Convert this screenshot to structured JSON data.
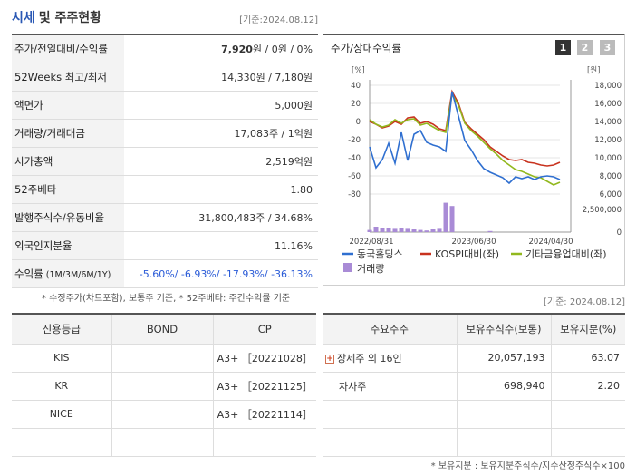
{
  "header": {
    "title": "시세",
    "subtitle": "및 주주현황",
    "date": "[기준:2024.08.12]"
  },
  "price_table": [
    {
      "label": "주가/전일대비/수익률",
      "value_bold": "7,920",
      "value": "원 / 0원 / 0%"
    },
    {
      "label": "52Weeks 최고/최저",
      "value": "14,330원 / 7,180원"
    },
    {
      "label": "액면가",
      "value": "5,000원"
    },
    {
      "label": "거래량/거래대금",
      "value": "17,083주 / 1억원"
    },
    {
      "label": "시가총액",
      "value": "2,519억원"
    },
    {
      "label": "52주베타",
      "value": "1.80"
    },
    {
      "label": "발행주식수/유동비율",
      "value": "31,800,483주 / 34.68%"
    },
    {
      "label": "외국인지분율",
      "value": "11.16%"
    },
    {
      "label": "수익률",
      "label_small": "(1M/3M/6M/1Y)",
      "value": "-5.60%/ -6.93%/ -17.93%/ -36.13%"
    }
  ],
  "note1": "* 수정주가(차트포함), 보통주 기준, * 52주베타: 주간수익률 기준",
  "note_date2": "[기준: 2024.08.12]",
  "chart_panel": {
    "title": "주가/상대수익률",
    "pages": [
      "1",
      "2",
      "3"
    ],
    "active_page": 1
  },
  "chart_data": {
    "type": "line",
    "left_unit": "[%]",
    "right_unit": "[원]",
    "left_ticks": [
      "40",
      "20",
      "0",
      "-20",
      "-40",
      "-60",
      "-80"
    ],
    "right_ticks": [
      "18,000",
      "16,000",
      "14,000",
      "12,000",
      "10,000",
      "8,000",
      "6,000"
    ],
    "volume_ticks": [
      "2,500,000",
      "0"
    ],
    "x_labels": [
      "2022/08/31",
      "2023/06/30",
      "2024/04/30"
    ],
    "ylim_left": [
      -80,
      40
    ],
    "ylim_right": [
      6000,
      18000
    ],
    "series": [
      {
        "name": "동국홀딩스",
        "color": "#2f6fd0",
        "axis": "right",
        "values": [
          11200,
          8900,
          9800,
          11600,
          9400,
          12800,
          9700,
          12600,
          13000,
          11700,
          11400,
          11200,
          10700,
          17300,
          14600,
          11900,
          10900,
          9700,
          8800,
          8400,
          8100,
          7800,
          7200,
          7900,
          7700,
          7900,
          7600,
          7900,
          8000,
          7900,
          7600
        ]
      },
      {
        "name": "KOSPI대비(좌)",
        "color": "#c8321e",
        "axis": "left",
        "values": [
          0,
          -3,
          -7,
          -5,
          0,
          -3,
          4,
          5,
          -2,
          0,
          -3,
          -8,
          -10,
          33,
          20,
          -1,
          -8,
          -14,
          -20,
          -28,
          -33,
          -38,
          -42,
          -43,
          -42,
          -45,
          -46,
          -48,
          -49,
          -48,
          -45
        ]
      },
      {
        "name": "기타금융업대비(좌)",
        "color": "#92b81e",
        "axis": "left",
        "values": [
          2,
          -3,
          -6,
          -4,
          2,
          -2,
          2,
          3,
          -4,
          -2,
          -6,
          -10,
          -12,
          30,
          18,
          -2,
          -10,
          -16,
          -23,
          -30,
          -36,
          -43,
          -48,
          -53,
          -55,
          -58,
          -61,
          -62,
          -66,
          -70,
          -67
        ]
      },
      {
        "name": "거래량",
        "color": "#a98bd6",
        "axis": "volume",
        "values": [
          200000,
          500000,
          350000,
          400000,
          300000,
          350000,
          300000,
          250000,
          200000,
          150000,
          250000,
          300000,
          2700000,
          2400000,
          0,
          0,
          0,
          0,
          0,
          100000,
          0,
          0,
          0,
          0,
          0,
          0,
          0,
          0,
          0,
          0,
          0
        ]
      }
    ],
    "volume_max": 2500000
  },
  "credit": {
    "headers": [
      "신용등급",
      "BOND",
      "CP"
    ],
    "rows": [
      [
        "KIS",
        "",
        "A3+ ［20221028］"
      ],
      [
        "KR",
        "",
        "A3+ ［20221125］"
      ],
      [
        "NICE",
        "",
        "A3+ ［20221114］"
      ],
      [
        "",
        "",
        ""
      ]
    ]
  },
  "holders": {
    "headers": [
      "주요주주",
      "보유주식수(보통)",
      "보유지분(%)"
    ],
    "rows": [
      {
        "name": "장세주 외 16인",
        "shares": "20,057,193",
        "pct": "63.07",
        "expand": true
      },
      {
        "name": "자사주",
        "shares": "698,940",
        "pct": "2.20",
        "expand": false
      },
      {
        "name": "",
        "shares": "",
        "pct": ""
      },
      {
        "name": "",
        "shares": "",
        "pct": ""
      }
    ]
  },
  "note3": "* 보유지분 : 보유지분주식수/지수산정주식수×100",
  "icons": {
    "expand": "plus-icon"
  }
}
